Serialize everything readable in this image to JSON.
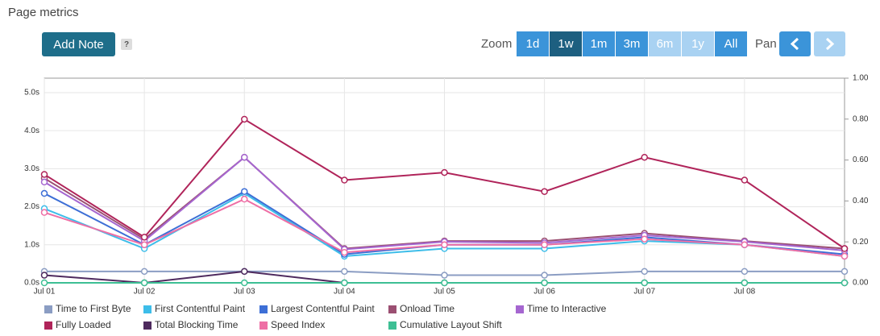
{
  "header": {
    "title": "Page metrics"
  },
  "toolbar": {
    "add_note": "Add Note",
    "help": "?",
    "zoom_label": "Zoom",
    "zoom_options": [
      {
        "label": "1d",
        "state": "enabled"
      },
      {
        "label": "1w",
        "state": "active"
      },
      {
        "label": "1m",
        "state": "enabled"
      },
      {
        "label": "3m",
        "state": "enabled"
      },
      {
        "label": "6m",
        "state": "disabled"
      },
      {
        "label": "1y",
        "state": "disabled"
      },
      {
        "label": "All",
        "state": "enabled"
      }
    ],
    "pan_label": "Pan"
  },
  "chart_data": {
    "type": "line",
    "categories": [
      "Jul 01",
      "Jul 02",
      "Jul 03",
      "Jul 04",
      "Jul 05",
      "Jul 06",
      "Jul 07",
      "Jul 08",
      null
    ],
    "ylim": [
      0,
      5.38
    ],
    "yticks": [
      {
        "value": 0,
        "label": "0.0s"
      },
      {
        "value": 1,
        "label": "1.0s"
      },
      {
        "value": 2,
        "label": "2.0s"
      },
      {
        "value": 3,
        "label": "3.0s"
      },
      {
        "value": 4,
        "label": "4.0s"
      },
      {
        "value": 5,
        "label": "5.0s"
      }
    ],
    "y2lim": [
      0,
      1
    ],
    "y2ticks": [
      {
        "value": 0,
        "label": "0.00"
      },
      {
        "value": 0.2,
        "label": "0.20"
      },
      {
        "value": 0.4,
        "label": "0.40"
      },
      {
        "value": 0.6,
        "label": "0.60"
      },
      {
        "value": 0.8,
        "label": "0.80"
      },
      {
        "value": 1,
        "label": "1.00"
      }
    ],
    "grid": true,
    "legend": "bottom",
    "series": [
      {
        "name": "Time to First Byte",
        "color": "#8b9dc3",
        "values": [
          0.3,
          0.3,
          0.3,
          0.3,
          0.2,
          0.2,
          0.3,
          0.3,
          0.3
        ]
      },
      {
        "name": "First Contentful Paint",
        "color": "#3dbde9",
        "values": [
          1.95,
          0.9,
          2.35,
          0.7,
          0.9,
          0.9,
          1.1,
          1.0,
          0.7
        ]
      },
      {
        "name": "Largest Contentful Paint",
        "color": "#3d6fd6",
        "values": [
          2.35,
          1.0,
          2.4,
          0.75,
          1.0,
          1.0,
          1.2,
          1.0,
          0.75
        ]
      },
      {
        "name": "Onload Time",
        "color": "#9b4f72",
        "values": [
          2.75,
          1.15,
          3.3,
          0.9,
          1.1,
          1.1,
          1.3,
          1.1,
          0.9
        ]
      },
      {
        "name": "Time to Interactive",
        "color": "#a566d0",
        "values": [
          2.65,
          1.1,
          3.3,
          0.88,
          1.08,
          1.05,
          1.25,
          1.08,
          0.85
        ]
      },
      {
        "name": "Fully Loaded",
        "color": "#b0245a",
        "values": [
          2.85,
          1.2,
          4.3,
          2.7,
          2.9,
          2.4,
          3.3,
          2.7,
          0.9
        ]
      },
      {
        "name": "Total Blocking Time",
        "color": "#4e2a5e",
        "values": [
          0.2,
          0,
          0.3,
          0,
          0,
          0,
          0,
          0,
          0
        ]
      },
      {
        "name": "Speed Index",
        "color": "#ee6fa5",
        "values": [
          1.85,
          1.0,
          2.2,
          0.8,
          1.0,
          1.0,
          1.15,
          1.0,
          0.7
        ]
      },
      {
        "name": "Cumulative Layout Shift",
        "color": "#3dbf94",
        "axis": "y2",
        "values": [
          0,
          0,
          0,
          0,
          0,
          0,
          0,
          0,
          0
        ]
      }
    ]
  }
}
